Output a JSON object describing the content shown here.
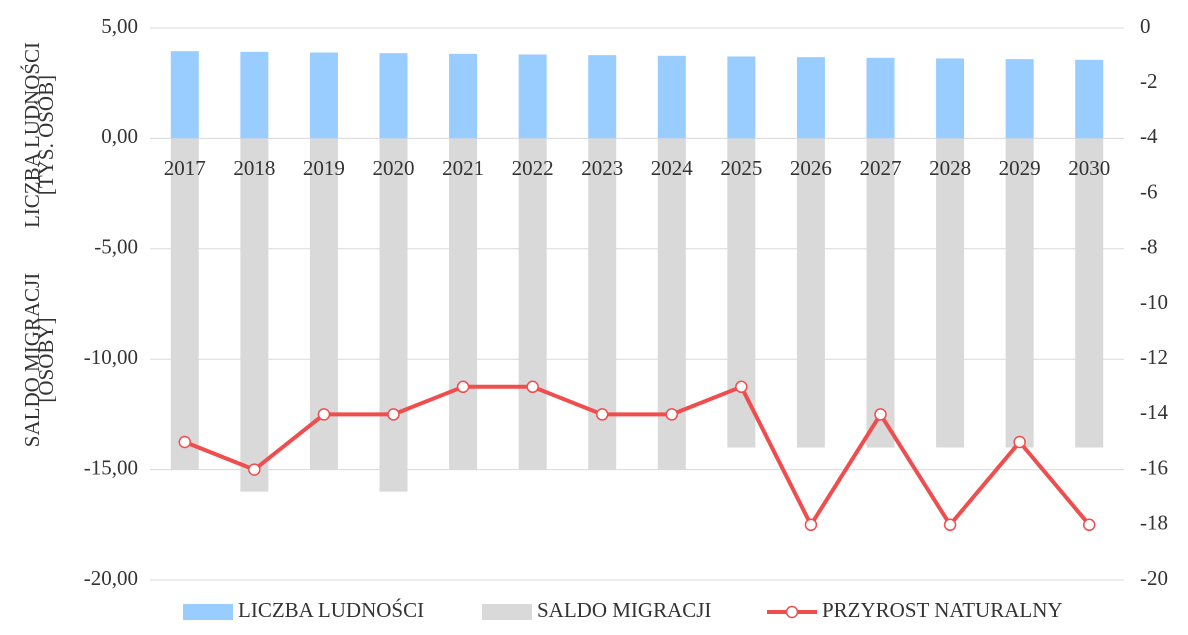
{
  "chart_data": {
    "type": "bar",
    "categories": [
      "2017",
      "2018",
      "2019",
      "2020",
      "2021",
      "2022",
      "2023",
      "2024",
      "2025",
      "2026",
      "2027",
      "2028",
      "2029",
      "2030"
    ],
    "series": [
      {
        "name": "LICZBA LUDNOŚCI",
        "type": "bar",
        "color": "#99ccff",
        "values": [
          3.95,
          3.92,
          3.89,
          3.86,
          3.83,
          3.8,
          3.77,
          3.74,
          3.71,
          3.68,
          3.65,
          3.62,
          3.59,
          3.56
        ]
      },
      {
        "name": "SALDO MIGRACJI",
        "type": "bar",
        "color": "#d9d9d9",
        "values": [
          -15,
          -16,
          -15,
          -16,
          -15,
          -15,
          -15,
          -15,
          -14,
          -14,
          -14,
          -14,
          -14,
          -14
        ]
      },
      {
        "name": "PRZYROST NATURALNY",
        "type": "line",
        "axis": "y2",
        "color": "#f04e4e",
        "values": [
          -15,
          -16,
          -14,
          -14,
          -13,
          -13,
          -14,
          -14,
          -13,
          -18,
          -14,
          -18,
          -15,
          -18
        ]
      }
    ],
    "ylabels": [
      [
        "LICZBA LUDNOŚCI",
        "[TYS. OSÓB]"
      ],
      [
        "SALDO MIGRACJI",
        "[OSOBY]"
      ]
    ],
    "ylim": [
      -20,
      5
    ],
    "yticks": [
      {
        "value": 5,
        "label": "5,00"
      },
      {
        "value": 0,
        "label": "0,00"
      },
      {
        "value": -5,
        "label": "-5,00"
      },
      {
        "value": -10,
        "label": "-10,00"
      },
      {
        "value": -15,
        "label": "-15,00"
      },
      {
        "value": -20,
        "label": "-20,00"
      }
    ],
    "y2lim": [
      -20,
      0
    ],
    "y2ticks": [
      0,
      -2,
      -4,
      -6,
      -8,
      -10,
      -12,
      -14,
      -16,
      -18,
      -20
    ],
    "grid": true,
    "legend": "bottom"
  }
}
